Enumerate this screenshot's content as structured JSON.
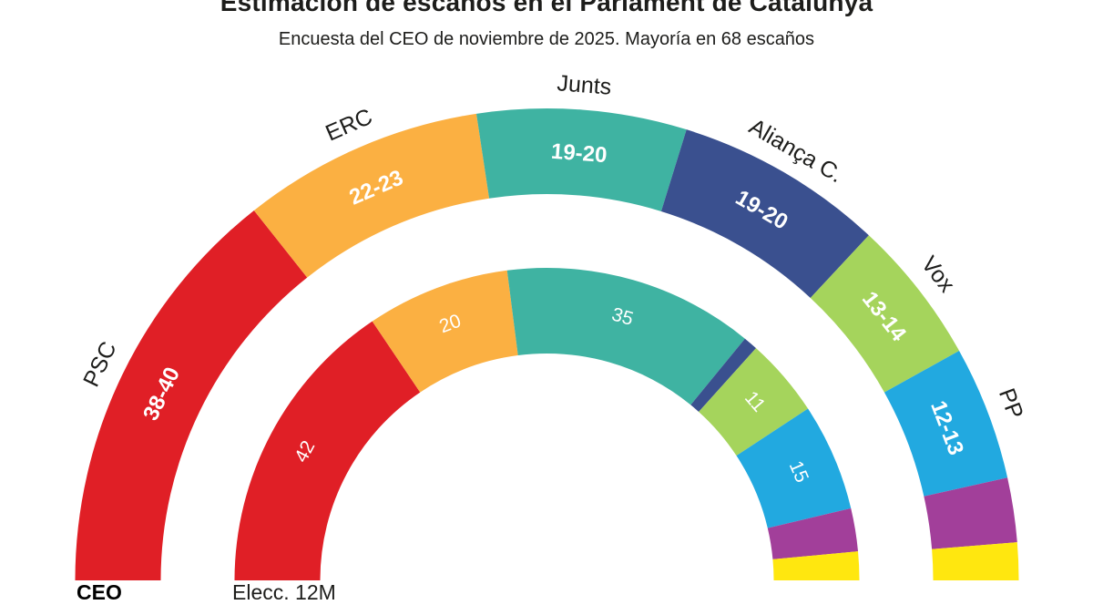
{
  "header": {
    "title": "Estimación de escaños en el Parlament de Catalunya",
    "subtitle": "Encuesta del CEO de noviembre de 2025. Mayoría en 68 escaños"
  },
  "chart_data": {
    "type": "pie",
    "variant": "parliament-hemicycle",
    "title": "Estimación de escaños en el Parlament de Catalunya",
    "subtitle": "Encuesta del CEO de noviembre de 2025. Mayoría en 68 escaños",
    "majority_seats_note": "Mayoría en 68 escaños",
    "legend_position": "below-left",
    "rings": [
      {
        "name": "CEO",
        "footer_bold": true,
        "segments": [
          {
            "id": "psc",
            "name_label": "PSC",
            "value_label": "38-40",
            "arc_seats": 39,
            "color": "#e01f26"
          },
          {
            "id": "erc",
            "name_label": "ERC",
            "value_label": "22-23",
            "arc_seats": 22.5,
            "color": "#fbb042"
          },
          {
            "id": "junts",
            "name_label": "Junts",
            "value_label": "19-20",
            "arc_seats": 19.5,
            "color": "#3fb3a2"
          },
          {
            "id": "alianca-c",
            "name_label": "Aliança C.",
            "value_label": "19-20",
            "arc_seats": 19.5,
            "color": "#3a508f"
          },
          {
            "id": "vox",
            "name_label": "Vox",
            "value_label": "13-14",
            "arc_seats": 13.5,
            "color": "#a5d45c"
          },
          {
            "id": "pp",
            "name_label": "PP",
            "value_label": "12-13",
            "arc_seats": 12.5,
            "color": "#22a9e0"
          },
          {
            "id": "purple-seg",
            "name_label": null,
            "value_label": null,
            "arc_seats": 6,
            "color": "#a23f9a"
          },
          {
            "id": "yellow-seg",
            "name_label": null,
            "value_label": null,
            "arc_seats": 3.5,
            "color": "#ffe70f"
          }
        ]
      },
      {
        "name": "Elecc. 12M",
        "footer_bold": false,
        "segments": [
          {
            "id": "red-seg",
            "name_label": null,
            "value_label": "42",
            "arc_seats": 42,
            "color": "#e01f26"
          },
          {
            "id": "orange-seg",
            "name_label": null,
            "value_label": "20",
            "arc_seats": 20,
            "color": "#fbb042"
          },
          {
            "id": "teal-seg",
            "name_label": null,
            "value_label": "35",
            "arc_seats": 35,
            "color": "#3fb3a2"
          },
          {
            "id": "navy-seg",
            "name_label": null,
            "value_label": null,
            "arc_seats": 2,
            "color": "#3a508f"
          },
          {
            "id": "green-seg",
            "name_label": null,
            "value_label": "11",
            "arc_seats": 11,
            "color": "#a5d45c"
          },
          {
            "id": "cyan-seg",
            "name_label": null,
            "value_label": "15",
            "arc_seats": 15,
            "color": "#22a9e0"
          },
          {
            "id": "purple-seg",
            "name_label": null,
            "value_label": null,
            "arc_seats": 6,
            "color": "#a23f9a"
          },
          {
            "id": "yellow-seg",
            "name_label": null,
            "value_label": null,
            "arc_seats": 4,
            "color": "#ffe70f"
          }
        ]
      }
    ]
  }
}
